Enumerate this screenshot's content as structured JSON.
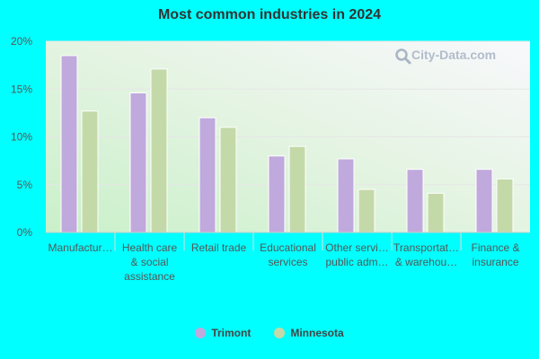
{
  "chart_data": {
    "type": "bar",
    "title": "Most common industries in 2024",
    "categories": [
      [
        "Manufactur…"
      ],
      [
        "Health care",
        "& social",
        "assistance"
      ],
      [
        "Retail trade"
      ],
      [
        "Educational",
        "services"
      ],
      [
        "Other servi…",
        "public adm…"
      ],
      [
        "Transportat…",
        "& warehou…"
      ],
      [
        "Finance &",
        "insurance"
      ]
    ],
    "series": [
      {
        "name": "Trimont",
        "color": "#c0a9dc",
        "values": [
          18.5,
          14.6,
          12.0,
          8.0,
          7.7,
          6.6,
          6.6
        ]
      },
      {
        "name": "Minnesota",
        "color": "#c4d9a8",
        "values": [
          12.7,
          17.1,
          11.0,
          9.0,
          4.5,
          4.1,
          5.6
        ]
      }
    ],
    "ylim": [
      0,
      20
    ],
    "yticks": [
      0,
      5,
      10,
      15,
      20
    ],
    "ytick_labels": [
      "0%",
      "5%",
      "10%",
      "15%",
      "20%"
    ],
    "grid": true,
    "legend": "bottom-center"
  },
  "watermark": {
    "text": "City-Data.com",
    "icon": "magnifier-icon"
  }
}
